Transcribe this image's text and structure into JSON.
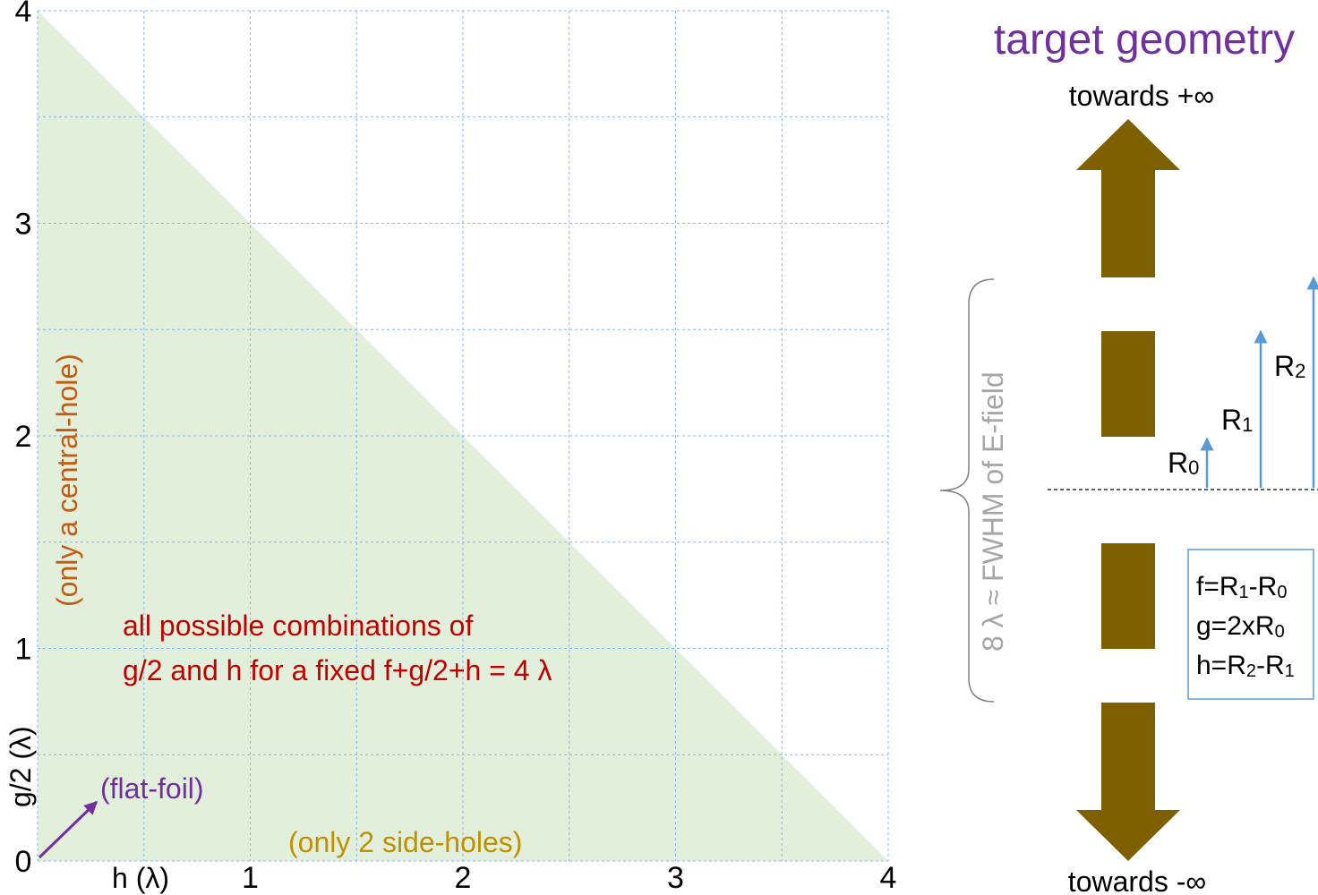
{
  "chart_data": {
    "type": "area",
    "xlabel": "h (λ)",
    "ylabel": "g/2 (λ)",
    "xlim": [
      0,
      4
    ],
    "ylim": [
      0,
      4
    ],
    "x_ticks": [
      "1",
      "2",
      "3",
      "4"
    ],
    "y_ticks": [
      "0",
      "1",
      "2",
      "3",
      "4"
    ],
    "grid": true,
    "region": {
      "vertices": [
        [
          0,
          0
        ],
        [
          0,
          4
        ],
        [
          4,
          0
        ]
      ],
      "color": "#e2efda"
    },
    "annotations": {
      "region_line1": "all possible combinations of",
      "region_line2": "g/2 and h for a fixed f+g/2+h = 4 λ",
      "y_axis_note": "(only a central-hole)",
      "x_axis_note": "(only 2 side-holes)",
      "origin_note": "(flat-foil)"
    }
  },
  "geometry": {
    "title": "target geometry",
    "top_label": "towards +∞",
    "bottom_label": "towards -∞",
    "brace_label": "8 λ ≈ FWHM of E-field",
    "radii": [
      {
        "base": "R",
        "sub": "0"
      },
      {
        "base": "R",
        "sub": "1"
      },
      {
        "base": "R",
        "sub": "2"
      }
    ],
    "definitions": [
      [
        {
          "t": "f=R"
        },
        {
          "s": "1"
        },
        {
          "t": "-R"
        },
        {
          "s": "0"
        }
      ],
      [
        {
          "t": "g=2xR"
        },
        {
          "s": "0"
        }
      ],
      [
        {
          "t": "h=R"
        },
        {
          "s": "2"
        },
        {
          "t": "-R"
        },
        {
          "s": "1"
        }
      ]
    ]
  },
  "colors": {
    "region": "#e2efda",
    "grid": "#8db4e2",
    "foil": "#7f6000",
    "arrow_blue": "#5b9bd5",
    "region_text": "#c00000",
    "y_note": "#c55a11",
    "x_note": "#bf9000",
    "origin_note": "#7030a0",
    "brace_text": "#a6a6a6"
  }
}
